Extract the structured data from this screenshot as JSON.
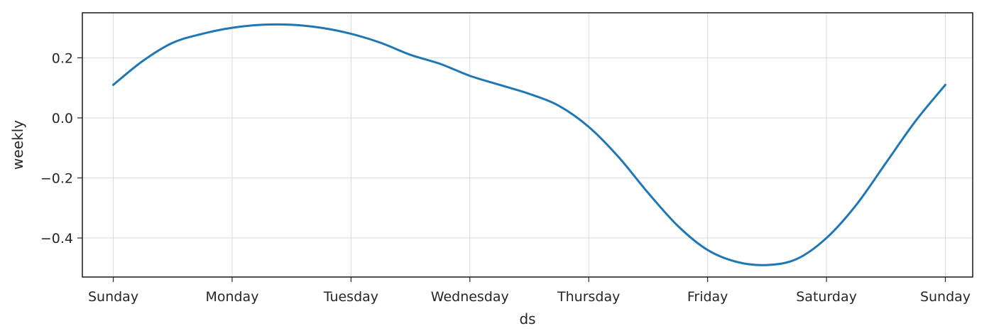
{
  "chart_data": {
    "type": "line",
    "xlabel": "ds",
    "ylabel": "weekly",
    "x_ticks": [
      {
        "pos": 0,
        "label": "Sunday"
      },
      {
        "pos": 1,
        "label": "Monday"
      },
      {
        "pos": 2,
        "label": "Tuesday"
      },
      {
        "pos": 3,
        "label": "Wednesday"
      },
      {
        "pos": 4,
        "label": "Thursday"
      },
      {
        "pos": 5,
        "label": "Friday"
      },
      {
        "pos": 6,
        "label": "Saturday"
      },
      {
        "pos": 7,
        "label": "Sunday"
      }
    ],
    "y_ticks": [
      {
        "value": 0.2,
        "label": "0.2"
      },
      {
        "value": 0.0,
        "label": "0.0"
      },
      {
        "value": -0.2,
        "label": "−0.2"
      },
      {
        "value": -0.4,
        "label": "−0.4"
      }
    ],
    "xlim": [
      -0.26,
      7.23
    ],
    "ylim": [
      -0.53,
      0.35
    ],
    "grid": true,
    "series": [
      {
        "color": "#1f77b4",
        "x": [
          0,
          0.25,
          0.5,
          0.75,
          1,
          1.25,
          1.5,
          1.75,
          2,
          2.25,
          2.5,
          2.75,
          3,
          3.25,
          3.5,
          3.75,
          4,
          4.25,
          4.5,
          4.75,
          5,
          5.25,
          5.5,
          5.75,
          6,
          6.25,
          6.5,
          6.75,
          7
        ],
        "y": [
          0.11,
          0.19,
          0.25,
          0.28,
          0.3,
          0.31,
          0.31,
          0.3,
          0.28,
          0.25,
          0.21,
          0.18,
          0.14,
          0.11,
          0.08,
          0.04,
          -0.03,
          -0.13,
          -0.25,
          -0.36,
          -0.44,
          -0.48,
          -0.49,
          -0.47,
          -0.4,
          -0.29,
          -0.15,
          -0.01,
          0.11
        ]
      }
    ]
  }
}
